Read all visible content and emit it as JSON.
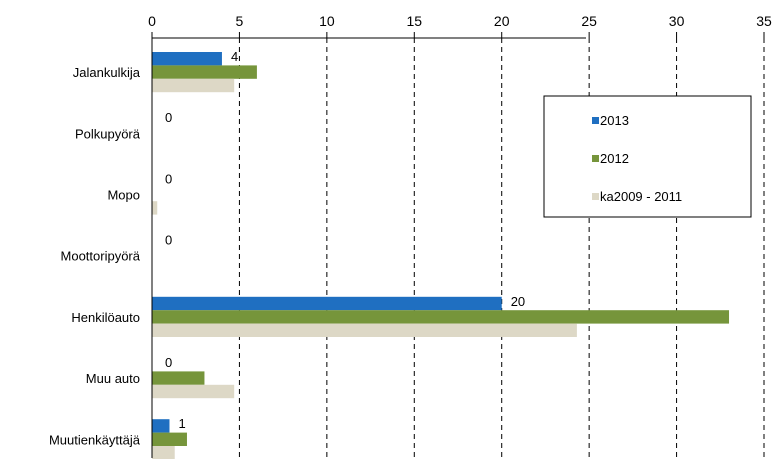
{
  "chart_data": {
    "type": "bar",
    "orientation": "horizontal",
    "x_axis_position": "top",
    "xlim": [
      0,
      35
    ],
    "xticks": [
      0,
      5,
      10,
      15,
      20,
      25,
      30,
      35
    ],
    "grid": "vertical dashed",
    "categories": [
      "Jalankulkija",
      "Polkupyörä",
      "Mopo",
      "Moottoripyörä",
      "Henkilöauto",
      "Muu auto",
      "Muutienkäyttäjä"
    ],
    "series": [
      {
        "name": "2013",
        "color": "#1f6fc1",
        "values": [
          4,
          0,
          0,
          0,
          20,
          0,
          1
        ]
      },
      {
        "name": "2012",
        "color": "#76953b",
        "values": [
          6,
          0,
          0,
          0,
          33,
          3,
          2
        ]
      },
      {
        "name": "ka2009 - 2011",
        "color": "#ddd8c6",
        "values": [
          4.7,
          0,
          0.3,
          0,
          24.3,
          4.7,
          1.3
        ]
      }
    ],
    "data_labels": {
      "series": "2013",
      "values": [
        "4",
        "0",
        "0",
        "0",
        "20",
        "0",
        "1"
      ]
    },
    "legend_position": "right-upper"
  }
}
